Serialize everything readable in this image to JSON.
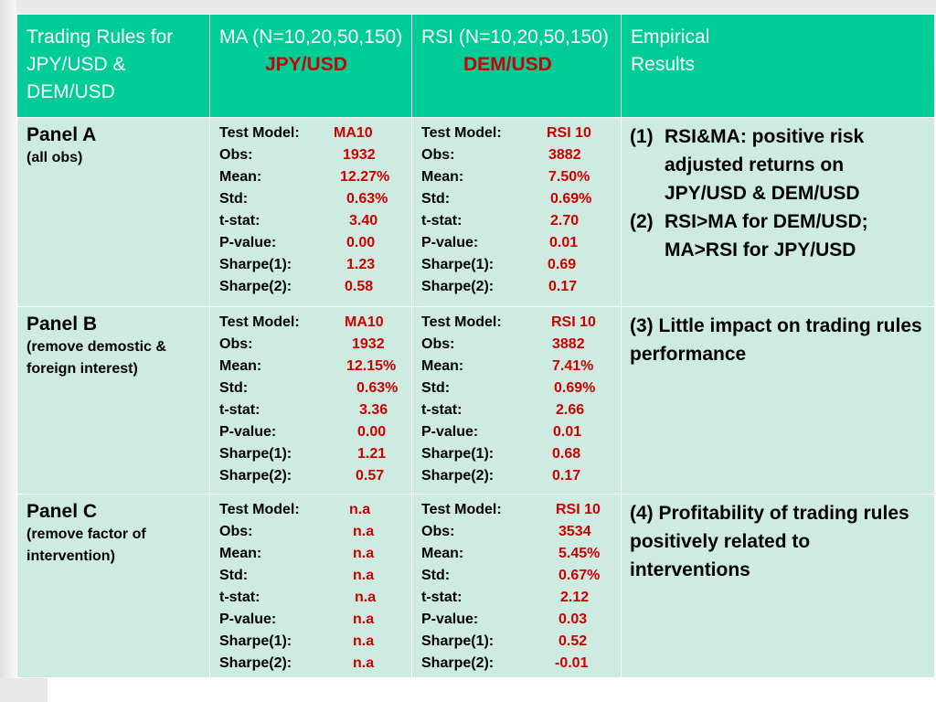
{
  "header": {
    "col1": "Trading Rules for JPY/USD & DEM/USD",
    "col2_main": "MA (N=10,20,50,150)",
    "col2_sub": "JPY/USD",
    "col3_main": "RSI (N=10,20,50,150)",
    "col3_sub": "DEM/USD",
    "col4": "Empirical Results"
  },
  "labels": [
    "Test Model:",
    "Obs:",
    "Mean:",
    "Std:",
    "t-stat:",
    "P-value:",
    "Sharpe(1):",
    "Sharpe(2):"
  ],
  "panels": [
    {
      "title": "Panel A",
      "subtitle": "(all obs)",
      "ma": [
        "MA10",
        "1932",
        "12.27%",
        "0.63%",
        "3.40",
        "0.00",
        "1.23",
        "0.58"
      ],
      "rsi": [
        "RSI 10",
        "3882",
        "7.50%",
        "0.69%",
        "2.70",
        "0.01",
        "0.69",
        "0.17"
      ],
      "results": [
        {
          "num": "(1)",
          "text": "RSI&MA: positive risk adjusted returns on JPY/USD & DEM/USD"
        },
        {
          "num": "(2)",
          "text": "RSI>MA for DEM/USD; MA>RSI for JPY/USD"
        }
      ]
    },
    {
      "title": "Panel B",
      "subtitle": "(remove demostic & foreign interest)",
      "ma": [
        "MA10",
        "1932",
        "12.15%",
        "0.63%",
        "3.36",
        "0.00",
        "1.21",
        "0.57"
      ],
      "rsi": [
        "RSI 10",
        "3882",
        "7.41%",
        "0.69%",
        "2.66",
        "0.01",
        "0.68",
        "0.17"
      ],
      "results": [
        {
          "num": "",
          "text": "(3) Little impact on trading rules performance"
        }
      ]
    },
    {
      "title": "Panel C",
      "subtitle": "(remove factor of intervention)",
      "ma": [
        "n.a",
        "n.a",
        "n.a",
        "n.a",
        "n.a",
        "n.a",
        "n.a",
        "n.a"
      ],
      "rsi": [
        "RSI 10",
        "3534",
        "5.45%",
        "0.67%",
        "2.12",
        "0.03",
        "0.52",
        "-0.01"
      ],
      "results": [
        {
          "num": "",
          "text": "(4) Profitability of trading rules positively related to interventions"
        }
      ]
    }
  ],
  "colors": {
    "header_bg": "#00cc96",
    "body_bg": "#cdebe0",
    "value_red": "#cc0000"
  }
}
